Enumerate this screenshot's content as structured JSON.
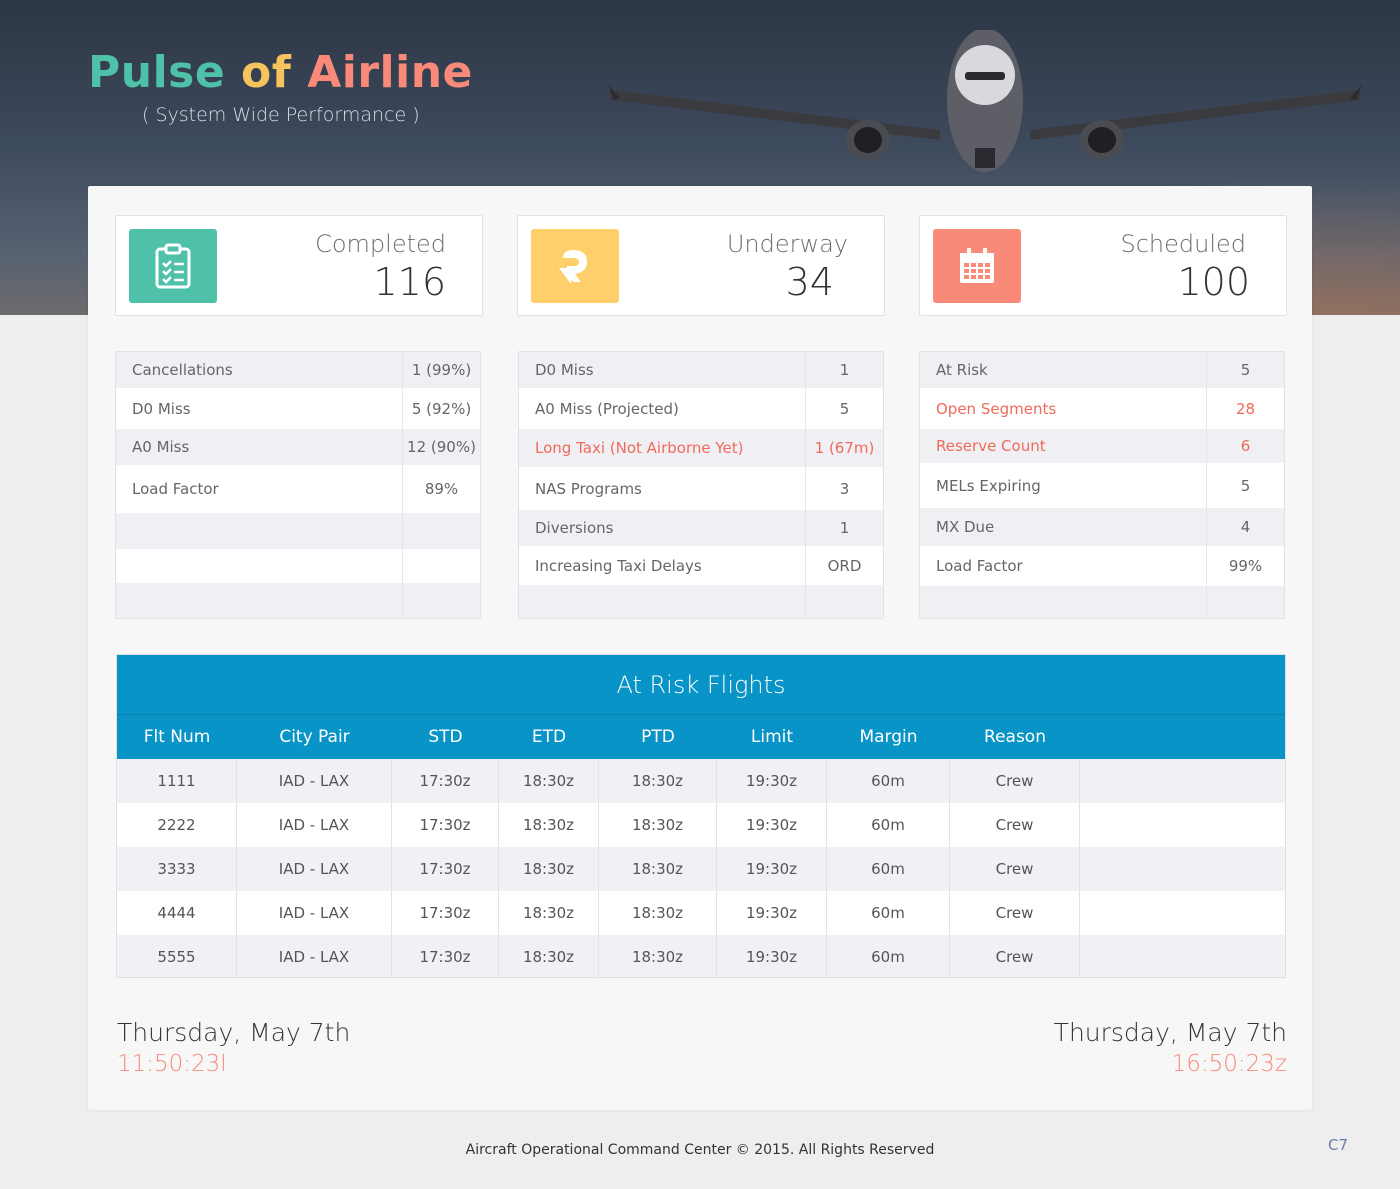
{
  "header": {
    "title_word1": "Pulse",
    "title_word2": "of",
    "title_word3": "Airline",
    "subtitle": "( System Wide Performance )"
  },
  "stats": [
    {
      "label": "Completed",
      "value": "116",
      "color": "#4fc1a8",
      "icon": "clipboard-checklist-icon"
    },
    {
      "label": "Underway",
      "value": "34",
      "color": "#fecf6a",
      "icon": "redo-arrow-icon"
    },
    {
      "label": "Scheduled",
      "value": "100",
      "color": "#f98a7a",
      "icon": "calendar-icon"
    }
  ],
  "panels": {
    "left": [
      {
        "key": "Cancellations",
        "value": "1 (99%)"
      },
      {
        "key": "D0 Miss",
        "value": "5 (92%)"
      },
      {
        "key": "A0 Miss",
        "value": "12 (90%)"
      },
      {
        "key": "Load Factor",
        "value": "89%"
      }
    ],
    "middle": [
      {
        "key": "D0 Miss",
        "value": "1"
      },
      {
        "key": "A0 Miss (Projected)",
        "value": "5"
      },
      {
        "key": "Long Taxi (Not Airborne Yet)",
        "value": "1 (67m)"
      },
      {
        "key": "NAS Programs",
        "value": "3"
      },
      {
        "key": "Diversions",
        "value": "1"
      },
      {
        "key": "Increasing Taxi Delays",
        "value": "ORD"
      }
    ],
    "right": [
      {
        "key": "At Risk",
        "value": "5"
      },
      {
        "key": "Open Segments",
        "value": "28"
      },
      {
        "key": "Reserve Count",
        "value": "6"
      },
      {
        "key": "MELs Expiring",
        "value": "5"
      },
      {
        "key": "MX Due",
        "value": "4"
      },
      {
        "key": "Load Factor",
        "value": "99%"
      }
    ]
  },
  "at_risk": {
    "title": "At Risk Flights",
    "columns": [
      "Flt Num",
      "City Pair",
      "STD",
      "ETD",
      "PTD",
      "Limit",
      "Margin",
      "Reason"
    ],
    "rows": [
      [
        "1111",
        "IAD - LAX",
        "17:30z",
        "18:30z",
        "18:30z",
        "19:30z",
        "60m",
        "Crew"
      ],
      [
        "2222",
        "IAD - LAX",
        "17:30z",
        "18:30z",
        "18:30z",
        "19:30z",
        "60m",
        "Crew"
      ],
      [
        "3333",
        "IAD - LAX",
        "17:30z",
        "18:30z",
        "18:30z",
        "19:30z",
        "60m",
        "Crew"
      ],
      [
        "4444",
        "IAD - LAX",
        "17:30z",
        "18:30z",
        "18:30z",
        "19:30z",
        "60m",
        "Crew"
      ],
      [
        "5555",
        "IAD - LAX",
        "17:30z",
        "18:30z",
        "18:30z",
        "19:30z",
        "60m",
        "Crew"
      ]
    ]
  },
  "clocks": {
    "local_date": "Thursday, May 7th",
    "local_time": "11:50:23l",
    "zulu_date": "Thursday, May 7th",
    "zulu_time": "16:50:23z"
  },
  "footer": {
    "copyright": "Aircraft Operational Command Center © 2015. All Rights Reserved",
    "version": "C7"
  }
}
